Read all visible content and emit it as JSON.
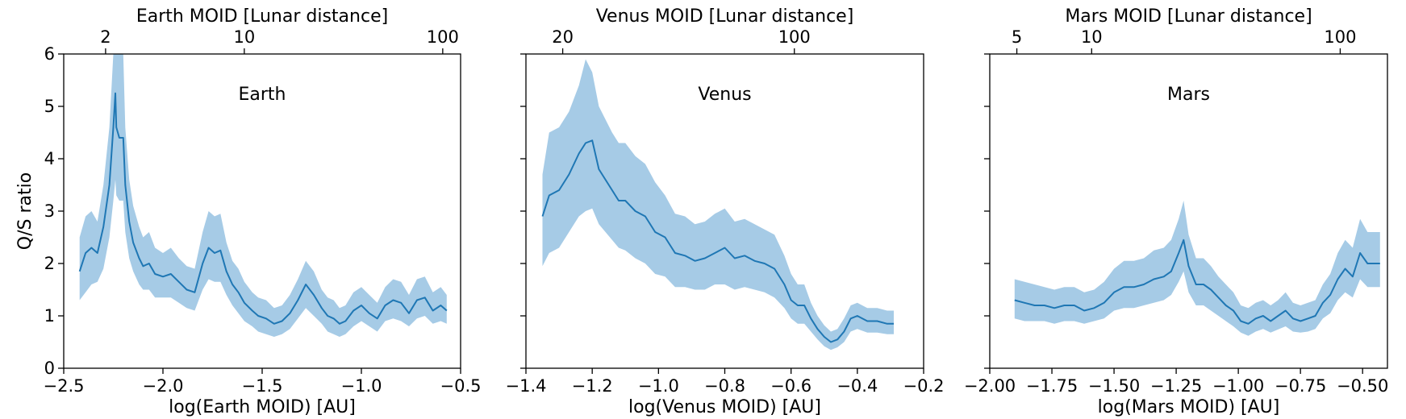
{
  "figure": {
    "ylabel": "Q/S ratio"
  },
  "colors": {
    "line": "#1f77b4",
    "band": "#a6cbe6",
    "axes": "#000000"
  },
  "chart_data": [
    {
      "type": "line",
      "annotation": "Earth",
      "xlabel": "log(Earth MOID) [AU]",
      "top_xlabel": "Earth MOID [Lunar distance]",
      "ylabel": "Q/S ratio",
      "xlim": [
        -2.5,
        -0.5
      ],
      "ylim": [
        0,
        6
      ],
      "xticks": [
        -2.5,
        -2.0,
        -1.5,
        -1.0,
        -0.5
      ],
      "xtick_labels": [
        "−2.5",
        "−2.0",
        "−1.5",
        "−1.0",
        "−0.5"
      ],
      "yticks": [
        0,
        1,
        2,
        3,
        4,
        5,
        6
      ],
      "ytick_labels": [
        "0",
        "1",
        "2",
        "3",
        "4",
        "5",
        "6"
      ],
      "top_ticks_ld": [
        2,
        10,
        100
      ],
      "top_tick_labels": [
        "2",
        "10",
        "100"
      ],
      "series": [
        {
          "x": [
            -2.42,
            -2.39,
            -2.36,
            -2.33,
            -2.3,
            -2.27,
            -2.25,
            -2.24,
            -2.235,
            -2.22,
            -2.2,
            -2.19,
            -2.17,
            -2.15,
            -2.12,
            -2.1,
            -2.07,
            -2.04,
            -2.0,
            -1.96,
            -1.92,
            -1.88,
            -1.84,
            -1.8,
            -1.77,
            -1.74,
            -1.71,
            -1.68,
            -1.65,
            -1.62,
            -1.59,
            -1.55,
            -1.52,
            -1.48,
            -1.44,
            -1.4,
            -1.36,
            -1.32,
            -1.28,
            -1.24,
            -1.2,
            -1.17,
            -1.14,
            -1.11,
            -1.08,
            -1.04,
            -1.0,
            -0.96,
            -0.92,
            -0.88,
            -0.84,
            -0.8,
            -0.76,
            -0.72,
            -0.68,
            -0.64,
            -0.6,
            -0.57
          ],
          "y": [
            1.85,
            2.2,
            2.3,
            2.2,
            2.7,
            3.5,
            4.6,
            5.25,
            4.6,
            4.4,
            4.4,
            3.5,
            2.8,
            2.4,
            2.1,
            1.95,
            2.0,
            1.8,
            1.75,
            1.8,
            1.65,
            1.5,
            1.45,
            2.0,
            2.3,
            2.2,
            2.25,
            1.85,
            1.6,
            1.45,
            1.25,
            1.1,
            1.0,
            0.95,
            0.85,
            0.9,
            1.05,
            1.3,
            1.6,
            1.4,
            1.15,
            1.0,
            0.95,
            0.85,
            0.9,
            1.1,
            1.2,
            1.05,
            0.95,
            1.2,
            1.3,
            1.25,
            1.05,
            1.3,
            1.35,
            1.1,
            1.2,
            1.1
          ],
          "lower": [
            1.3,
            1.45,
            1.6,
            1.65,
            1.9,
            2.5,
            3.2,
            3.6,
            3.3,
            3.2,
            3.2,
            2.6,
            2.1,
            1.85,
            1.6,
            1.5,
            1.5,
            1.35,
            1.35,
            1.35,
            1.25,
            1.15,
            1.1,
            1.5,
            1.7,
            1.65,
            1.65,
            1.4,
            1.2,
            1.05,
            0.9,
            0.8,
            0.7,
            0.65,
            0.6,
            0.65,
            0.75,
            0.95,
            1.15,
            1.0,
            0.85,
            0.7,
            0.65,
            0.6,
            0.65,
            0.8,
            0.9,
            0.8,
            0.7,
            0.9,
            0.95,
            0.9,
            0.8,
            0.95,
            1.0,
            0.85,
            0.9,
            0.85
          ],
          "upper": [
            2.5,
            2.9,
            3.0,
            2.8,
            3.5,
            4.6,
            6.0,
            6.0,
            6.0,
            6.0,
            6.0,
            4.6,
            3.6,
            3.1,
            2.7,
            2.5,
            2.6,
            2.3,
            2.2,
            2.3,
            2.1,
            1.95,
            1.9,
            2.6,
            3.0,
            2.9,
            2.95,
            2.4,
            2.05,
            1.9,
            1.65,
            1.45,
            1.35,
            1.3,
            1.15,
            1.2,
            1.4,
            1.7,
            2.05,
            1.85,
            1.5,
            1.35,
            1.3,
            1.15,
            1.2,
            1.45,
            1.55,
            1.4,
            1.25,
            1.55,
            1.7,
            1.65,
            1.4,
            1.7,
            1.75,
            1.45,
            1.55,
            1.4
          ]
        }
      ]
    },
    {
      "type": "line",
      "annotation": "Venus",
      "xlabel": "log(Venus MOID) [AU]",
      "top_xlabel": "Venus MOID [Lunar distance]",
      "ylabel": "",
      "xlim": [
        -1.4,
        -0.2
      ],
      "ylim": [
        0,
        6
      ],
      "xticks": [
        -1.4,
        -1.2,
        -1.0,
        -0.8,
        -0.6,
        -0.4,
        -0.2
      ],
      "xtick_labels": [
        "−1.4",
        "−1.2",
        "−1.0",
        "−0.8",
        "−0.6",
        "−0.4",
        "−0.2"
      ],
      "yticks": [
        0,
        1,
        2,
        3,
        4,
        5,
        6
      ],
      "ytick_labels": [],
      "top_ticks_ld": [
        20,
        100
      ],
      "top_tick_labels": [
        "20",
        "100"
      ],
      "series": [
        {
          "x": [
            -1.35,
            -1.33,
            -1.3,
            -1.27,
            -1.24,
            -1.22,
            -1.2,
            -1.18,
            -1.16,
            -1.14,
            -1.12,
            -1.1,
            -1.07,
            -1.04,
            -1.01,
            -0.98,
            -0.95,
            -0.92,
            -0.89,
            -0.86,
            -0.83,
            -0.8,
            -0.77,
            -0.74,
            -0.71,
            -0.68,
            -0.65,
            -0.62,
            -0.6,
            -0.58,
            -0.56,
            -0.54,
            -0.52,
            -0.5,
            -0.48,
            -0.46,
            -0.44,
            -0.42,
            -0.4,
            -0.37,
            -0.34,
            -0.31,
            -0.29
          ],
          "y": [
            2.9,
            3.3,
            3.4,
            3.7,
            4.1,
            4.3,
            4.35,
            3.8,
            3.6,
            3.4,
            3.2,
            3.2,
            3.0,
            2.9,
            2.6,
            2.5,
            2.2,
            2.15,
            2.05,
            2.1,
            2.2,
            2.3,
            2.1,
            2.15,
            2.05,
            2.0,
            1.9,
            1.6,
            1.3,
            1.2,
            1.2,
            0.95,
            0.75,
            0.6,
            0.5,
            0.55,
            0.7,
            0.95,
            1.0,
            0.9,
            0.9,
            0.85,
            0.85
          ],
          "lower": [
            1.95,
            2.2,
            2.3,
            2.6,
            2.9,
            3.0,
            3.05,
            2.75,
            2.6,
            2.45,
            2.3,
            2.25,
            2.1,
            2.0,
            1.8,
            1.75,
            1.55,
            1.55,
            1.5,
            1.5,
            1.6,
            1.6,
            1.5,
            1.55,
            1.5,
            1.45,
            1.35,
            1.15,
            0.95,
            0.85,
            0.85,
            0.7,
            0.55,
            0.42,
            0.35,
            0.4,
            0.5,
            0.7,
            0.75,
            0.68,
            0.68,
            0.65,
            0.65
          ],
          "upper": [
            3.7,
            4.5,
            4.6,
            4.9,
            5.4,
            5.9,
            5.65,
            5.0,
            4.75,
            4.5,
            4.3,
            4.3,
            4.05,
            3.9,
            3.55,
            3.3,
            2.95,
            2.9,
            2.75,
            2.8,
            2.95,
            3.05,
            2.8,
            2.85,
            2.75,
            2.65,
            2.55,
            2.15,
            1.8,
            1.6,
            1.6,
            1.25,
            1.0,
            0.82,
            0.7,
            0.75,
            0.95,
            1.2,
            1.25,
            1.15,
            1.15,
            1.1,
            1.1
          ]
        }
      ]
    },
    {
      "type": "line",
      "annotation": "Mars",
      "xlabel": "log(Mars MOID) [AU]",
      "top_xlabel": "Mars MOID [Lunar distance]",
      "ylabel": "",
      "xlim": [
        -2.0,
        -0.4
      ],
      "ylim": [
        0,
        6
      ],
      "xticks": [
        -2.0,
        -1.75,
        -1.5,
        -1.25,
        -1.0,
        -0.75,
        -0.5
      ],
      "xtick_labels": [
        "−2.00",
        "−1.75",
        "−1.50",
        "−1.25",
        "−1.00",
        "−0.75",
        "−0.50"
      ],
      "yticks": [
        0,
        1,
        2,
        3,
        4,
        5,
        6
      ],
      "ytick_labels": [],
      "top_ticks_ld": [
        5,
        10,
        100
      ],
      "top_tick_labels": [
        "5",
        "10",
        "100"
      ],
      "series": [
        {
          "x": [
            -1.9,
            -1.86,
            -1.82,
            -1.78,
            -1.74,
            -1.7,
            -1.66,
            -1.62,
            -1.58,
            -1.54,
            -1.5,
            -1.46,
            -1.42,
            -1.38,
            -1.34,
            -1.3,
            -1.27,
            -1.24,
            -1.22,
            -1.2,
            -1.17,
            -1.14,
            -1.11,
            -1.08,
            -1.05,
            -1.02,
            -0.99,
            -0.96,
            -0.93,
            -0.9,
            -0.87,
            -0.84,
            -0.81,
            -0.78,
            -0.75,
            -0.72,
            -0.69,
            -0.66,
            -0.63,
            -0.6,
            -0.57,
            -0.54,
            -0.51,
            -0.48,
            -0.45,
            -0.43
          ],
          "y": [
            1.3,
            1.25,
            1.2,
            1.2,
            1.15,
            1.2,
            1.2,
            1.1,
            1.15,
            1.25,
            1.45,
            1.55,
            1.55,
            1.6,
            1.7,
            1.75,
            1.85,
            2.2,
            2.45,
            1.95,
            1.6,
            1.6,
            1.5,
            1.35,
            1.2,
            1.1,
            0.9,
            0.85,
            0.95,
            1.0,
            0.9,
            1.0,
            1.1,
            0.95,
            0.9,
            0.95,
            1.0,
            1.25,
            1.4,
            1.7,
            1.9,
            1.75,
            2.2,
            2.0,
            2.0,
            2.0
          ],
          "lower": [
            0.95,
            0.9,
            0.9,
            0.9,
            0.85,
            0.9,
            0.9,
            0.85,
            0.9,
            0.95,
            1.1,
            1.15,
            1.15,
            1.2,
            1.25,
            1.3,
            1.4,
            1.65,
            1.85,
            1.45,
            1.2,
            1.2,
            1.1,
            1.0,
            0.9,
            0.8,
            0.68,
            0.62,
            0.7,
            0.75,
            0.68,
            0.74,
            0.8,
            0.7,
            0.68,
            0.7,
            0.75,
            0.95,
            1.05,
            1.3,
            1.45,
            1.35,
            1.7,
            1.55,
            1.55,
            1.55
          ],
          "upper": [
            1.7,
            1.65,
            1.6,
            1.55,
            1.5,
            1.55,
            1.55,
            1.45,
            1.5,
            1.65,
            1.9,
            2.05,
            2.05,
            2.1,
            2.25,
            2.3,
            2.45,
            2.85,
            3.2,
            2.55,
            2.1,
            2.1,
            1.95,
            1.75,
            1.6,
            1.45,
            1.2,
            1.15,
            1.25,
            1.3,
            1.2,
            1.3,
            1.45,
            1.25,
            1.2,
            1.25,
            1.3,
            1.6,
            1.8,
            2.2,
            2.45,
            2.3,
            2.85,
            2.6,
            2.6,
            2.6
          ]
        }
      ]
    }
  ]
}
